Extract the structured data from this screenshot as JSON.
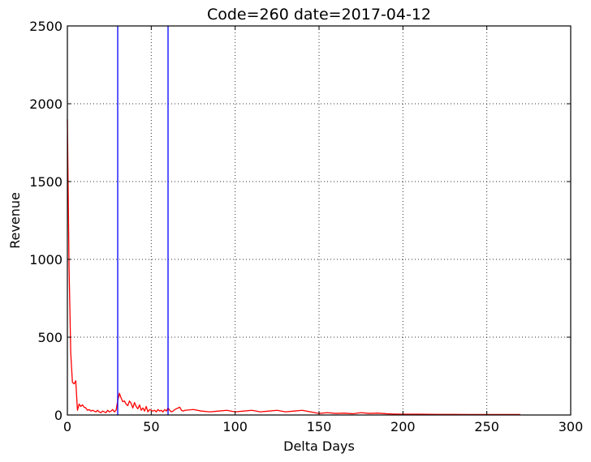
{
  "chart_data": {
    "type": "line",
    "title": "Code=260 date=2017-04-12",
    "xlabel": "Delta Days",
    "ylabel": "Revenue",
    "xlim": [
      0,
      300
    ],
    "ylim": [
      0,
      2500
    ],
    "xticks": [
      0,
      50,
      100,
      150,
      200,
      250,
      300
    ],
    "yticks": [
      0,
      500,
      1000,
      1500,
      2000,
      2500
    ],
    "grid": true,
    "series": [
      {
        "color": "#ff0000",
        "x": [
          0,
          1,
          2,
          3,
          4,
          5,
          6,
          7,
          8,
          9,
          10,
          11,
          12,
          13,
          14,
          15,
          16,
          17,
          18,
          19,
          20,
          21,
          22,
          23,
          24,
          25,
          26,
          27,
          28,
          29,
          30,
          31,
          32,
          33,
          34,
          35,
          36,
          37,
          38,
          39,
          40,
          41,
          42,
          43,
          44,
          45,
          46,
          47,
          48,
          49,
          50,
          51,
          52,
          53,
          54,
          55,
          56,
          57,
          58,
          59,
          60,
          61,
          62,
          63,
          64,
          65,
          66,
          67,
          68,
          69,
          70,
          75,
          80,
          85,
          90,
          95,
          100,
          105,
          110,
          115,
          120,
          125,
          130,
          135,
          140,
          145,
          150,
          155,
          160,
          165,
          170,
          175,
          180,
          185,
          190,
          195,
          200,
          210,
          220,
          230,
          240,
          250,
          260,
          270
        ],
        "y": [
          1900,
          950,
          400,
          210,
          200,
          220,
          30,
          70,
          55,
          65,
          50,
          45,
          30,
          35,
          25,
          30,
          25,
          20,
          30,
          20,
          15,
          25,
          20,
          15,
          30,
          20,
          25,
          35,
          20,
          30,
          90,
          140,
          110,
          85,
          90,
          70,
          60,
          90,
          75,
          45,
          80,
          55,
          40,
          65,
          30,
          45,
          25,
          55,
          20,
          35,
          30,
          25,
          30,
          20,
          35,
          25,
          30,
          20,
          35,
          25,
          45,
          30,
          20,
          25,
          35,
          40,
          45,
          50,
          30,
          25,
          30,
          35,
          25,
          20,
          25,
          30,
          20,
          25,
          30,
          20,
          25,
          30,
          20,
          25,
          30,
          20,
          10,
          15,
          10,
          12,
          8,
          15,
          10,
          12,
          8,
          6,
          5,
          5,
          4,
          4,
          3,
          3,
          3,
          3
        ]
      }
    ],
    "vlines": [
      {
        "x": 30,
        "color": "#0000ff"
      },
      {
        "x": 60,
        "color": "#0000ff"
      }
    ]
  }
}
